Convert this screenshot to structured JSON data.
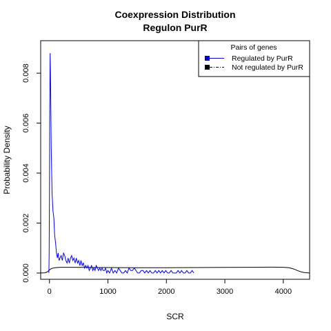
{
  "chart_data": {
    "type": "line",
    "title": "Coexpression Distribution",
    "subtitle": "Regulon PurR",
    "xlabel": "SCR",
    "ylabel": "Probability Density",
    "xlim": [
      -150,
      4450
    ],
    "ylim": [
      -0.00025,
      0.0093
    ],
    "x_ticks": [
      0,
      1000,
      2000,
      3000,
      4000
    ],
    "x_tick_labels": [
      "0",
      "1000",
      "2000",
      "3000",
      "4000"
    ],
    "y_ticks": [
      0,
      0.002,
      0.004,
      0.006,
      0.008
    ],
    "y_tick_labels": [
      "0.000",
      "0.002",
      "0.004",
      "0.006",
      "0.008"
    ],
    "grid": false,
    "legend": {
      "position": "top-right",
      "title": "Pairs of genes",
      "entries": [
        {
          "label": "Regulated by  PurR",
          "color": "#0000cc",
          "linestyle": "solid"
        },
        {
          "label": "Not regulated by  PurR",
          "color": "#000000",
          "linestyle": "dashdot"
        }
      ]
    },
    "series": [
      {
        "name": "Regulated by  PurR",
        "color": "#0000ff",
        "points": [
          [
            -10,
            0
          ],
          [
            -5,
            0.0008
          ],
          [
            0,
            0.003
          ],
          [
            5,
            0.0065
          ],
          [
            12,
            0.0088
          ],
          [
            20,
            0.0075
          ],
          [
            30,
            0.005
          ],
          [
            45,
            0.0032
          ],
          [
            60,
            0.0025
          ],
          [
            75,
            0.0022
          ],
          [
            90,
            0.0015
          ],
          [
            105,
            0.0012
          ],
          [
            120,
            0.0008
          ],
          [
            135,
            0.0006
          ],
          [
            150,
            0.0008
          ],
          [
            165,
            0.0005
          ],
          [
            180,
            0.0006
          ],
          [
            200,
            0.0007
          ],
          [
            220,
            0.0005
          ],
          [
            240,
            0.0008
          ],
          [
            260,
            0.0007
          ],
          [
            280,
            0.0005
          ],
          [
            300,
            0.0004
          ],
          [
            320,
            0.0006
          ],
          [
            340,
            0.0004
          ],
          [
            360,
            0.0006
          ],
          [
            380,
            0.0007
          ],
          [
            400,
            0.0005
          ],
          [
            420,
            0.0006
          ],
          [
            440,
            0.0004
          ],
          [
            460,
            0.0006
          ],
          [
            480,
            0.0004
          ],
          [
            500,
            0.0005
          ],
          [
            520,
            0.0003
          ],
          [
            540,
            0.0005
          ],
          [
            560,
            0.0003
          ],
          [
            580,
            0.0004
          ],
          [
            600,
            0.0002
          ],
          [
            620,
            0.0003
          ],
          [
            640,
            0.0002
          ],
          [
            660,
            0.0003
          ],
          [
            680,
            0.0001
          ],
          [
            700,
            0.0002
          ],
          [
            720,
            0.0003
          ],
          [
            740,
            0.0001
          ],
          [
            760,
            0.0002
          ],
          [
            780,
            0.0001
          ],
          [
            800,
            0.0003
          ],
          [
            820,
            0.0002
          ],
          [
            840,
            0.0001
          ],
          [
            860,
            0.0002
          ],
          [
            880,
            0.0001
          ],
          [
            900,
            0.0002
          ],
          [
            920,
            0.0001
          ],
          [
            940,
            0.0001
          ],
          [
            960,
            0.0002
          ],
          [
            980,
            0.0
          ],
          [
            1000,
            0.0001
          ],
          [
            1030,
            0.0
          ],
          [
            1060,
            0.0002
          ],
          [
            1090,
            0.0
          ],
          [
            1120,
            0.0001
          ],
          [
            1150,
            0.0
          ],
          [
            1180,
            0.0002
          ],
          [
            1210,
            0.0001
          ],
          [
            1240,
            0.0
          ],
          [
            1270,
            0.0
          ],
          [
            1300,
            0.0001
          ],
          [
            1330,
            0.0
          ],
          [
            1360,
            0.0002
          ],
          [
            1390,
            0.0001
          ],
          [
            1420,
            0.0001
          ],
          [
            1450,
            0.0002
          ],
          [
            1480,
            0.0001
          ],
          [
            1510,
            0.0
          ],
          [
            1540,
            0.0
          ],
          [
            1570,
            0.0001
          ],
          [
            1600,
            0.0001
          ],
          [
            1630,
            0.0
          ],
          [
            1660,
            0.0001
          ],
          [
            1690,
            0.0
          ],
          [
            1720,
            0.0001
          ],
          [
            1750,
            0.0
          ],
          [
            1780,
            0.0
          ],
          [
            1810,
            0.0001
          ],
          [
            1840,
            0.0
          ],
          [
            1870,
            0.0001
          ],
          [
            1900,
            0.0
          ],
          [
            1930,
            0.0001
          ],
          [
            1960,
            0.0
          ],
          [
            1990,
            0.0001
          ],
          [
            2020,
            0.0
          ],
          [
            2050,
            0.0
          ],
          [
            2080,
            0.0001
          ],
          [
            2110,
            0.0
          ],
          [
            2140,
            0.0
          ],
          [
            2170,
            0.0
          ],
          [
            2200,
            0.0001
          ],
          [
            2230,
            0.0
          ],
          [
            2260,
            0.0001
          ],
          [
            2290,
            0.0
          ],
          [
            2320,
            0.0
          ],
          [
            2350,
            0.0001
          ],
          [
            2380,
            0.0
          ],
          [
            2410,
            0.0
          ],
          [
            2440,
            0.0001
          ],
          [
            2470,
            0.0
          ]
        ]
      },
      {
        "name": "Not regulated by  PurR",
        "color": "#000000",
        "points": [
          [
            -150,
            0.0
          ],
          [
            -80,
            1e-05
          ],
          [
            -40,
            4e-05
          ],
          [
            -10,
            0.0001
          ],
          [
            20,
            0.00016
          ],
          [
            60,
            0.0002
          ],
          [
            120,
            0.00022
          ],
          [
            200,
            0.00023
          ],
          [
            300,
            0.00023
          ],
          [
            600,
            0.000225
          ],
          [
            1000,
            0.00022
          ],
          [
            1500,
            0.000215
          ],
          [
            2000,
            0.000215
          ],
          [
            2500,
            0.00022
          ],
          [
            3000,
            0.000225
          ],
          [
            3500,
            0.00023
          ],
          [
            3800,
            0.000235
          ],
          [
            4000,
            0.00023
          ],
          [
            4100,
            0.00021
          ],
          [
            4180,
            0.00016
          ],
          [
            4240,
            0.0001
          ],
          [
            4300,
            5e-05
          ],
          [
            4360,
            2e-05
          ],
          [
            4450,
            0.0
          ]
        ]
      }
    ]
  }
}
